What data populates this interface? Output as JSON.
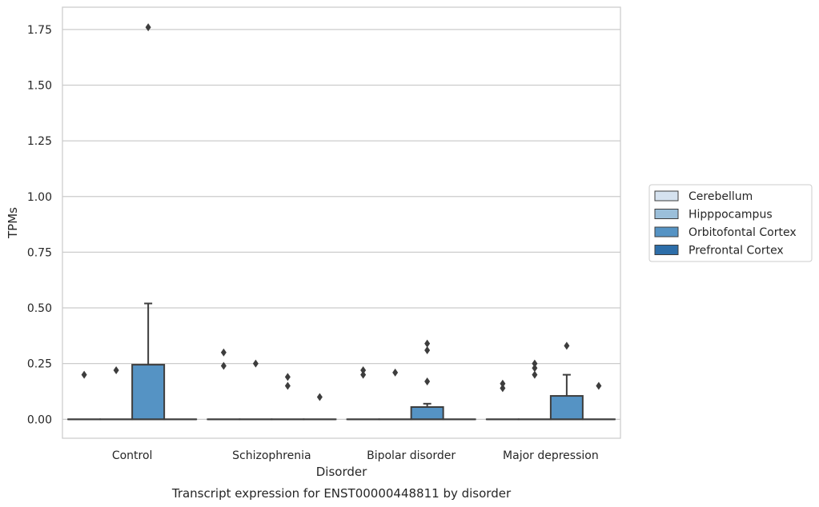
{
  "chart_data": {
    "type": "box",
    "title": "Transcript expression for ENST00000448811 by disorder",
    "xlabel": "Disorder",
    "ylabel": "TPMs",
    "categories": [
      "Control",
      "Schizophrenia",
      "Bipolar disorder",
      "Major depression"
    ],
    "ylim": [
      -0.085,
      1.85
    ],
    "yticks": [
      "0.00",
      "0.25",
      "0.50",
      "0.75",
      "1.00",
      "1.25",
      "1.50",
      "1.75"
    ],
    "grid": true,
    "legend_position": "right",
    "series": [
      {
        "name": "Cerebellum",
        "color": "#d5e2ef",
        "boxes": [
          {
            "q1": 0,
            "median": 0,
            "q3": 0,
            "whisker_low": 0,
            "whisker_high": 0,
            "outliers": [
              0.2
            ]
          },
          {
            "q1": 0,
            "median": 0,
            "q3": 0,
            "whisker_low": 0,
            "whisker_high": 0,
            "outliers": [
              0.24,
              0.3
            ]
          },
          {
            "q1": 0,
            "median": 0,
            "q3": 0,
            "whisker_low": 0,
            "whisker_high": 0,
            "outliers": [
              0.2,
              0.22
            ]
          },
          {
            "q1": 0,
            "median": 0,
            "q3": 0,
            "whisker_low": 0,
            "whisker_high": 0,
            "outliers": [
              0.14,
              0.16
            ]
          }
        ]
      },
      {
        "name": "Hipppocampus",
        "color": "#9bbfda",
        "boxes": [
          {
            "q1": 0,
            "median": 0,
            "q3": 0,
            "whisker_low": 0,
            "whisker_high": 0,
            "outliers": [
              0.22
            ]
          },
          {
            "q1": 0,
            "median": 0,
            "q3": 0,
            "whisker_low": 0,
            "whisker_high": 0,
            "outliers": [
              0.25
            ]
          },
          {
            "q1": 0,
            "median": 0,
            "q3": 0,
            "whisker_low": 0,
            "whisker_high": 0,
            "outliers": [
              0.21
            ]
          },
          {
            "q1": 0,
            "median": 0,
            "q3": 0,
            "whisker_low": 0,
            "whisker_high": 0,
            "outliers": [
              0.2,
              0.23,
              0.25
            ]
          }
        ]
      },
      {
        "name": "Orbitofontal Cortex",
        "color": "#5593c4",
        "boxes": [
          {
            "q1": 0,
            "median": 0,
            "q3": 0.245,
            "whisker_low": 0,
            "whisker_high": 0.52,
            "outliers": [
              1.76
            ]
          },
          {
            "q1": 0,
            "median": 0,
            "q3": 0,
            "whisker_low": 0,
            "whisker_high": 0,
            "outliers": [
              0.15,
              0.19
            ]
          },
          {
            "q1": 0,
            "median": 0,
            "q3": 0.055,
            "whisker_low": 0,
            "whisker_high": 0.07,
            "outliers": [
              0.17,
              0.31,
              0.34
            ]
          },
          {
            "q1": 0,
            "median": 0,
            "q3": 0.105,
            "whisker_low": 0,
            "whisker_high": 0.2,
            "outliers": [
              0.33
            ]
          }
        ]
      },
      {
        "name": "Prefrontal Cortex",
        "color": "#2d6ea9",
        "boxes": [
          {
            "q1": 0,
            "median": 0,
            "q3": 0,
            "whisker_low": 0,
            "whisker_high": 0,
            "outliers": []
          },
          {
            "q1": 0,
            "median": 0,
            "q3": 0,
            "whisker_low": 0,
            "whisker_high": 0,
            "outliers": [
              0.1
            ]
          },
          {
            "q1": 0,
            "median": 0,
            "q3": 0,
            "whisker_low": 0,
            "whisker_high": 0,
            "outliers": []
          },
          {
            "q1": 0,
            "median": 0,
            "q3": 0,
            "whisker_low": 0,
            "whisker_high": 0,
            "outliers": [
              0.15
            ]
          }
        ]
      }
    ]
  }
}
